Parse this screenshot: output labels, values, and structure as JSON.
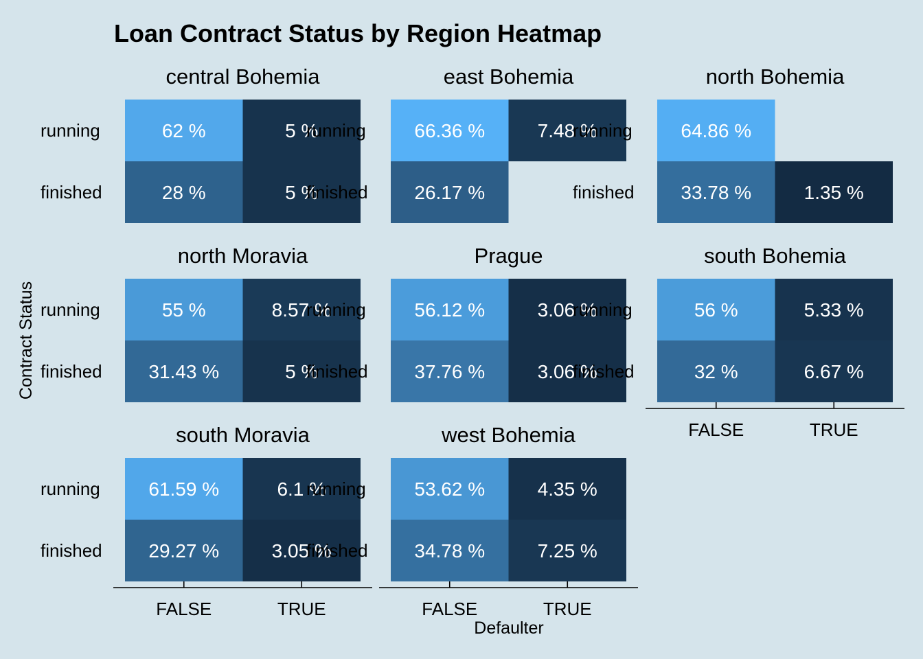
{
  "chart_data": {
    "type": "heatmap",
    "title": "Loan Contract Status by Region Heatmap",
    "xlabel": "Defaulter",
    "ylabel": "Contract Status",
    "x_categories": [
      "FALSE",
      "TRUE"
    ],
    "y_categories": [
      "running",
      "finished"
    ],
    "value_unit": "%",
    "color_scale": {
      "low": "#132b43",
      "high": "#56b1f7"
    },
    "panels": [
      {
        "name": "central Bohemia",
        "cells": [
          {
            "x": "FALSE",
            "y": "running",
            "value": 62,
            "label": "62 %"
          },
          {
            "x": "TRUE",
            "y": "running",
            "value": 5,
            "label": "5 %"
          },
          {
            "x": "FALSE",
            "y": "finished",
            "value": 28,
            "label": "28 %"
          },
          {
            "x": "TRUE",
            "y": "finished",
            "value": 5,
            "label": "5 %"
          }
        ]
      },
      {
        "name": "east Bohemia",
        "cells": [
          {
            "x": "FALSE",
            "y": "running",
            "value": 66.36,
            "label": "66.36 %"
          },
          {
            "x": "TRUE",
            "y": "running",
            "value": 7.48,
            "label": "7.48 %"
          },
          {
            "x": "FALSE",
            "y": "finished",
            "value": 26.17,
            "label": "26.17 %"
          }
        ]
      },
      {
        "name": "north Bohemia",
        "cells": [
          {
            "x": "FALSE",
            "y": "running",
            "value": 64.86,
            "label": "64.86 %"
          },
          {
            "x": "FALSE",
            "y": "finished",
            "value": 33.78,
            "label": "33.78 %"
          },
          {
            "x": "TRUE",
            "y": "finished",
            "value": 1.35,
            "label": "1.35 %"
          }
        ]
      },
      {
        "name": "north Moravia",
        "cells": [
          {
            "x": "FALSE",
            "y": "running",
            "value": 55,
            "label": "55 %"
          },
          {
            "x": "TRUE",
            "y": "running",
            "value": 8.57,
            "label": "8.57 %"
          },
          {
            "x": "FALSE",
            "y": "finished",
            "value": 31.43,
            "label": "31.43 %"
          },
          {
            "x": "TRUE",
            "y": "finished",
            "value": 5,
            "label": "5 %"
          }
        ]
      },
      {
        "name": "Prague",
        "cells": [
          {
            "x": "FALSE",
            "y": "running",
            "value": 56.12,
            "label": "56.12 %"
          },
          {
            "x": "TRUE",
            "y": "running",
            "value": 3.06,
            "label": "3.06 %"
          },
          {
            "x": "FALSE",
            "y": "finished",
            "value": 37.76,
            "label": "37.76 %"
          },
          {
            "x": "TRUE",
            "y": "finished",
            "value": 3.06,
            "label": "3.06 %"
          }
        ]
      },
      {
        "name": "south Bohemia",
        "cells": [
          {
            "x": "FALSE",
            "y": "running",
            "value": 56,
            "label": "56 %"
          },
          {
            "x": "TRUE",
            "y": "running",
            "value": 5.33,
            "label": "5.33 %"
          },
          {
            "x": "FALSE",
            "y": "finished",
            "value": 32,
            "label": "32 %"
          },
          {
            "x": "TRUE",
            "y": "finished",
            "value": 6.67,
            "label": "6.67 %"
          }
        ]
      },
      {
        "name": "south Moravia",
        "cells": [
          {
            "x": "FALSE",
            "y": "running",
            "value": 61.59,
            "label": "61.59 %"
          },
          {
            "x": "TRUE",
            "y": "running",
            "value": 6.1,
            "label": "6.1 %"
          },
          {
            "x": "FALSE",
            "y": "finished",
            "value": 29.27,
            "label": "29.27 %"
          },
          {
            "x": "TRUE",
            "y": "finished",
            "value": 3.05,
            "label": "3.05 %"
          }
        ]
      },
      {
        "name": "west Bohemia",
        "cells": [
          {
            "x": "FALSE",
            "y": "running",
            "value": 53.62,
            "label": "53.62 %"
          },
          {
            "x": "TRUE",
            "y": "running",
            "value": 4.35,
            "label": "4.35 %"
          },
          {
            "x": "FALSE",
            "y": "finished",
            "value": 34.78,
            "label": "34.78 %"
          },
          {
            "x": "TRUE",
            "y": "finished",
            "value": 7.25,
            "label": "7.25 %"
          }
        ]
      }
    ],
    "legend": "none",
    "grid": false
  }
}
